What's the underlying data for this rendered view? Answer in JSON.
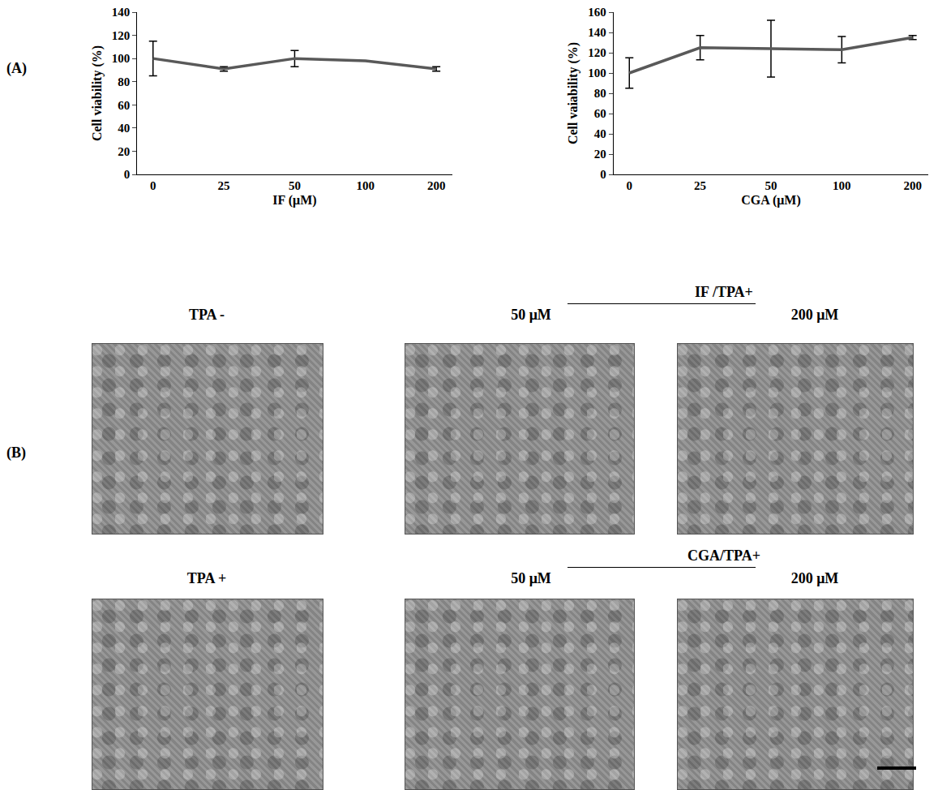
{
  "panel_labels": [
    "(A)",
    "(B)"
  ],
  "chart_data": [
    {
      "type": "line",
      "x_label": "IF (μM)",
      "y_label": "Cell viability (%)",
      "categories": [
        0,
        25,
        50,
        100,
        200
      ],
      "values": [
        100,
        91,
        100,
        98,
        91
      ],
      "errors": [
        15,
        2,
        7,
        0,
        2
      ],
      "color": "#595959",
      "ylim": [
        0,
        140
      ],
      "yticks": [
        0,
        20,
        40,
        60,
        80,
        100,
        120,
        140
      ],
      "grid": false
    },
    {
      "type": "line",
      "x_label": "CGA (μM)",
      "y_label": "Cell vaiability (%)",
      "categories": [
        0,
        25,
        50,
        100,
        200
      ],
      "values": [
        100,
        125,
        124,
        123,
        135
      ],
      "errors": [
        15,
        12,
        28,
        13,
        2
      ],
      "color": "#595959",
      "ylim": [
        0,
        160
      ],
      "yticks": [
        0,
        20,
        40,
        60,
        80,
        100,
        120,
        140,
        160
      ],
      "grid": false
    }
  ],
  "micrographs": {
    "rows": [
      {
        "control": "TPA -",
        "group": "IF /TPA+",
        "doses": [
          "50  μM",
          "200  μM"
        ]
      },
      {
        "control": "TPA +",
        "group": "CGA/TPA+",
        "doses": [
          "50  μM",
          "200  μM"
        ]
      }
    ]
  }
}
